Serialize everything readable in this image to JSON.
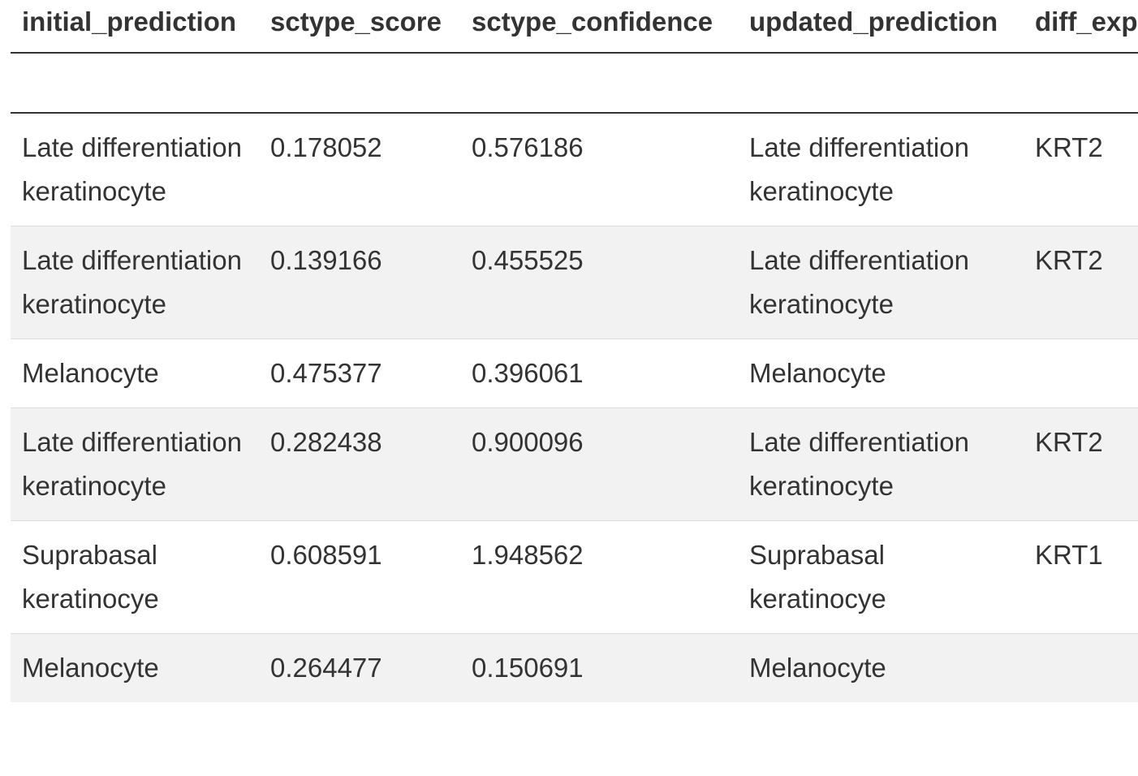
{
  "table": {
    "columns": [
      "initial_prediction",
      "sctype_score",
      "sctype_confidence",
      "updated_prediction",
      "diff_exp"
    ],
    "rows": [
      [
        "Late differentiation keratinocyte",
        "0.178052",
        "0.576186",
        "Late differentiation keratinocyte",
        "KRT2"
      ],
      [
        "Late differentiation keratinocyte",
        "0.139166",
        "0.455525",
        "Late differentiation keratinocyte",
        "KRT2"
      ],
      [
        "Melanocyte",
        "0.475377",
        "0.396061",
        "Melanocyte",
        ""
      ],
      [
        "Late differentiation keratinocyte",
        "0.282438",
        "0.900096",
        "Late differentiation keratinocyte",
        "KRT2"
      ],
      [
        "Suprabasal keratinocye",
        "0.608591",
        "1.948562",
        "Suprabasal keratinocye",
        "KRT1"
      ],
      [
        "Melanocyte",
        "0.264477",
        "0.150691",
        "Melanocyte",
        ""
      ]
    ]
  }
}
